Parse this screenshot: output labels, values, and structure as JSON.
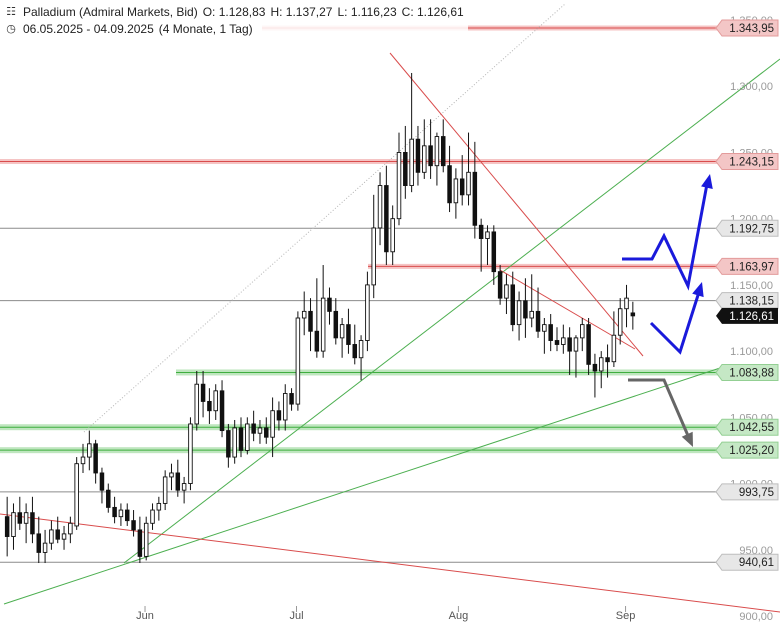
{
  "header": {
    "title": "Palladium (Admiral Markets, Bid)",
    "ohlc": {
      "open": "O: 1.128,83",
      "high": "H: 1.137,27",
      "low": "L: 1.116,23",
      "close": "C: 1.126,61"
    },
    "range": "06.05.2025 - 04.09.2025",
    "span": "(4 Monate, 1 Tag)"
  },
  "chart_data": {
    "type": "candlestick",
    "y_range": [
      900,
      1350
    ],
    "y_ticks": [
      "1.350,00",
      "1.300,00",
      "1.250,00",
      "1.200,00",
      "1.150,00",
      "1.100,00",
      "1.050,00",
      "1.000,00",
      "950,00",
      "900,00"
    ],
    "y_tick_values": [
      1350,
      1300,
      1250,
      1200,
      1150,
      1100,
      1050,
      1000,
      950,
      900
    ],
    "x_labels": [
      {
        "label": "Jun",
        "date": "2025-06-02"
      },
      {
        "label": "Jul",
        "date": "2025-07-01"
      },
      {
        "label": "Aug",
        "date": "2025-08-01"
      },
      {
        "label": "Sep",
        "date": "2025-09-02"
      }
    ],
    "levels": [
      {
        "label": "1.343,95",
        "value": 1343.95,
        "style": "red"
      },
      {
        "label": "1.243,15",
        "value": 1243.15,
        "style": "red"
      },
      {
        "label": "1.192,75",
        "value": 1192.75,
        "style": "gray"
      },
      {
        "label": "1.163,97",
        "value": 1163.97,
        "style": "red"
      },
      {
        "label": "1.138,15",
        "value": 1138.15,
        "style": "gray"
      },
      {
        "label": "1.083,88",
        "value": 1083.88,
        "style": "green"
      },
      {
        "label": "1.042,55",
        "value": 1042.55,
        "style": "green"
      },
      {
        "label": "1.025,20",
        "value": 1025.2,
        "style": "green"
      },
      {
        "label": "993,75",
        "value": 993.75,
        "style": "gray"
      },
      {
        "label": "940,61",
        "value": 940.61,
        "style": "gray"
      }
    ],
    "current": {
      "label": "1.126,61",
      "value": 1126.61
    },
    "candles": [
      {
        "o": 975,
        "h": 990,
        "l": 945,
        "c": 960
      },
      {
        "o": 960,
        "h": 985,
        "l": 950,
        "c": 978
      },
      {
        "o": 978,
        "h": 990,
        "l": 965,
        "c": 970
      },
      {
        "o": 970,
        "h": 985,
        "l": 955,
        "c": 978
      },
      {
        "o": 978,
        "h": 990,
        "l": 955,
        "c": 962
      },
      {
        "o": 962,
        "h": 975,
        "l": 940,
        "c": 948
      },
      {
        "o": 948,
        "h": 965,
        "l": 940,
        "c": 955
      },
      {
        "o": 955,
        "h": 972,
        "l": 950,
        "c": 965
      },
      {
        "o": 965,
        "h": 975,
        "l": 955,
        "c": 958
      },
      {
        "o": 958,
        "h": 968,
        "l": 950,
        "c": 962
      },
      {
        "o": 962,
        "h": 975,
        "l": 955,
        "c": 970
      },
      {
        "o": 968,
        "h": 1020,
        "l": 965,
        "c": 1015
      },
      {
        "o": 1015,
        "h": 1030,
        "l": 1008,
        "c": 1020
      },
      {
        "o": 1020,
        "h": 1040,
        "l": 1010,
        "c": 1030
      },
      {
        "o": 1030,
        "h": 1033,
        "l": 1000,
        "c": 1008
      },
      {
        "o": 1008,
        "h": 1012,
        "l": 985,
        "c": 995
      },
      {
        "o": 995,
        "h": 1000,
        "l": 978,
        "c": 982
      },
      {
        "o": 982,
        "h": 990,
        "l": 970,
        "c": 975
      },
      {
        "o": 975,
        "h": 985,
        "l": 968,
        "c": 980
      },
      {
        "o": 980,
        "h": 985,
        "l": 968,
        "c": 972
      },
      {
        "o": 972,
        "h": 980,
        "l": 960,
        "c": 965
      },
      {
        "o": 965,
        "h": 975,
        "l": 940,
        "c": 945
      },
      {
        "o": 945,
        "h": 975,
        "l": 942,
        "c": 970
      },
      {
        "o": 970,
        "h": 985,
        "l": 965,
        "c": 980
      },
      {
        "o": 980,
        "h": 990,
        "l": 972,
        "c": 985
      },
      {
        "o": 985,
        "h": 1010,
        "l": 980,
        "c": 1005
      },
      {
        "o": 1005,
        "h": 1015,
        "l": 995,
        "c": 1008
      },
      {
        "o": 1008,
        "h": 1018,
        "l": 990,
        "c": 995
      },
      {
        "o": 995,
        "h": 1005,
        "l": 985,
        "c": 1000
      },
      {
        "o": 1000,
        "h": 1050,
        "l": 995,
        "c": 1045
      },
      {
        "o": 1045,
        "h": 1085,
        "l": 1040,
        "c": 1075
      },
      {
        "o": 1075,
        "h": 1085,
        "l": 1050,
        "c": 1062
      },
      {
        "o": 1062,
        "h": 1072,
        "l": 1045,
        "c": 1055
      },
      {
        "o": 1055,
        "h": 1075,
        "l": 1048,
        "c": 1070
      },
      {
        "o": 1070,
        "h": 1078,
        "l": 1035,
        "c": 1040
      },
      {
        "o": 1040,
        "h": 1045,
        "l": 1012,
        "c": 1020
      },
      {
        "o": 1020,
        "h": 1048,
        "l": 1015,
        "c": 1042
      },
      {
        "o": 1042,
        "h": 1050,
        "l": 1020,
        "c": 1025
      },
      {
        "o": 1025,
        "h": 1050,
        "l": 1022,
        "c": 1045
      },
      {
        "o": 1045,
        "h": 1055,
        "l": 1032,
        "c": 1038
      },
      {
        "o": 1038,
        "h": 1048,
        "l": 1030,
        "c": 1042
      },
      {
        "o": 1042,
        "h": 1050,
        "l": 1030,
        "c": 1035
      },
      {
        "o": 1035,
        "h": 1065,
        "l": 1020,
        "c": 1055
      },
      {
        "o": 1055,
        "h": 1062,
        "l": 1040,
        "c": 1048
      },
      {
        "o": 1048,
        "h": 1075,
        "l": 1040,
        "c": 1068
      },
      {
        "o": 1068,
        "h": 1072,
        "l": 1055,
        "c": 1060
      },
      {
        "o": 1060,
        "h": 1130,
        "l": 1055,
        "c": 1125
      },
      {
        "o": 1125,
        "h": 1145,
        "l": 1112,
        "c": 1130
      },
      {
        "o": 1130,
        "h": 1140,
        "l": 1100,
        "c": 1115
      },
      {
        "o": 1115,
        "h": 1155,
        "l": 1095,
        "c": 1100
      },
      {
        "o": 1100,
        "h": 1165,
        "l": 1095,
        "c": 1140
      },
      {
        "o": 1140,
        "h": 1148,
        "l": 1120,
        "c": 1130
      },
      {
        "o": 1130,
        "h": 1140,
        "l": 1105,
        "c": 1110
      },
      {
        "o": 1110,
        "h": 1125,
        "l": 1095,
        "c": 1120
      },
      {
        "o": 1120,
        "h": 1132,
        "l": 1098,
        "c": 1105
      },
      {
        "o": 1105,
        "h": 1120,
        "l": 1090,
        "c": 1095
      },
      {
        "o": 1095,
        "h": 1112,
        "l": 1078,
        "c": 1108
      },
      {
        "o": 1108,
        "h": 1160,
        "l": 1100,
        "c": 1150
      },
      {
        "o": 1150,
        "h": 1218,
        "l": 1140,
        "c": 1193
      },
      {
        "o": 1193,
        "h": 1235,
        "l": 1180,
        "c": 1225
      },
      {
        "o": 1225,
        "h": 1240,
        "l": 1165,
        "c": 1175
      },
      {
        "o": 1175,
        "h": 1210,
        "l": 1165,
        "c": 1200
      },
      {
        "o": 1200,
        "h": 1265,
        "l": 1195,
        "c": 1250
      },
      {
        "o": 1250,
        "h": 1270,
        "l": 1215,
        "c": 1225
      },
      {
        "o": 1225,
        "h": 1310,
        "l": 1220,
        "c": 1260
      },
      {
        "o": 1260,
        "h": 1270,
        "l": 1225,
        "c": 1235
      },
      {
        "o": 1235,
        "h": 1275,
        "l": 1230,
        "c": 1255
      },
      {
        "o": 1255,
        "h": 1275,
        "l": 1230,
        "c": 1240
      },
      {
        "o": 1240,
        "h": 1265,
        "l": 1225,
        "c": 1262
      },
      {
        "o": 1262,
        "h": 1275,
        "l": 1235,
        "c": 1240
      },
      {
        "o": 1240,
        "h": 1255,
        "l": 1205,
        "c": 1212
      },
      {
        "o": 1212,
        "h": 1238,
        "l": 1200,
        "c": 1230
      },
      {
        "o": 1230,
        "h": 1248,
        "l": 1210,
        "c": 1218
      },
      {
        "o": 1218,
        "h": 1265,
        "l": 1210,
        "c": 1235
      },
      {
        "o": 1235,
        "h": 1258,
        "l": 1185,
        "c": 1195
      },
      {
        "o": 1195,
        "h": 1200,
        "l": 1160,
        "c": 1185
      },
      {
        "o": 1185,
        "h": 1195,
        "l": 1165,
        "c": 1190
      },
      {
        "o": 1190,
        "h": 1195,
        "l": 1150,
        "c": 1160
      },
      {
        "o": 1160,
        "h": 1165,
        "l": 1135,
        "c": 1140
      },
      {
        "o": 1140,
        "h": 1158,
        "l": 1128,
        "c": 1150
      },
      {
        "o": 1150,
        "h": 1160,
        "l": 1115,
        "c": 1120
      },
      {
        "o": 1120,
        "h": 1145,
        "l": 1108,
        "c": 1138
      },
      {
        "o": 1138,
        "h": 1155,
        "l": 1110,
        "c": 1125
      },
      {
        "o": 1125,
        "h": 1158,
        "l": 1118,
        "c": 1130
      },
      {
        "o": 1130,
        "h": 1148,
        "l": 1110,
        "c": 1115
      },
      {
        "o": 1115,
        "h": 1125,
        "l": 1098,
        "c": 1120
      },
      {
        "o": 1120,
        "h": 1128,
        "l": 1100,
        "c": 1108
      },
      {
        "o": 1108,
        "h": 1118,
        "l": 1100,
        "c": 1105
      },
      {
        "o": 1105,
        "h": 1120,
        "l": 1098,
        "c": 1110
      },
      {
        "o": 1110,
        "h": 1118,
        "l": 1082,
        "c": 1100
      },
      {
        "o": 1100,
        "h": 1112,
        "l": 1080,
        "c": 1110
      },
      {
        "o": 1110,
        "h": 1125,
        "l": 1100,
        "c": 1120
      },
      {
        "o": 1120,
        "h": 1125,
        "l": 1082,
        "c": 1090
      },
      {
        "o": 1090,
        "h": 1098,
        "l": 1065,
        "c": 1085
      },
      {
        "o": 1085,
        "h": 1100,
        "l": 1072,
        "c": 1095
      },
      {
        "o": 1095,
        "h": 1105,
        "l": 1080,
        "c": 1092
      },
      {
        "o": 1092,
        "h": 1130,
        "l": 1088,
        "c": 1112
      },
      {
        "o": 1112,
        "h": 1140,
        "l": 1105,
        "c": 1132
      },
      {
        "o": 1132,
        "h": 1150,
        "l": 1118,
        "c": 1140
      },
      {
        "o": 1128.83,
        "h": 1137.27,
        "l": 1116.23,
        "c": 1126.61
      }
    ]
  }
}
